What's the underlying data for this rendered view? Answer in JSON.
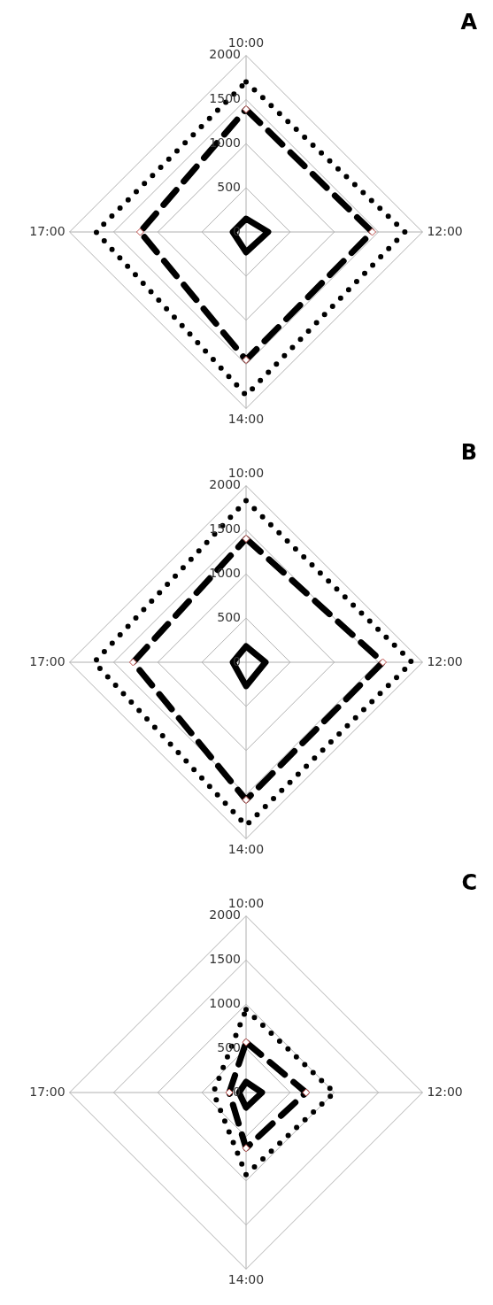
{
  "chart_data": [
    {
      "type": "radar",
      "title": "A",
      "categories": [
        "10:00",
        "12:00",
        "14:00",
        "17:00"
      ],
      "ylim": [
        0,
        2000
      ],
      "yticks": [
        0,
        500,
        1000,
        1500,
        2000
      ],
      "grid": true,
      "series": [
        {
          "color": "#000000",
          "line_style": "solid",
          "marker": "none",
          "values": [
            150,
            250,
            230,
            150
          ]
        },
        {
          "color": "#000000",
          "line_style": "dashed",
          "marker": "diamond",
          "values": [
            1390,
            1430,
            1450,
            1200
          ]
        },
        {
          "color": "#000000",
          "line_style": "dotted",
          "marker": "none",
          "values": [
            1700,
            1800,
            1850,
            1700
          ]
        }
      ]
    },
    {
      "type": "radar",
      "title": "B",
      "categories": [
        "10:00",
        "12:00",
        "14:00",
        "17:00"
      ],
      "ylim": [
        0,
        2000
      ],
      "yticks": [
        0,
        500,
        1000,
        1500,
        2000
      ],
      "grid": true,
      "series": [
        {
          "color": "#000000",
          "line_style": "solid",
          "marker": "none",
          "values": [
            180,
            220,
            270,
            150
          ]
        },
        {
          "color": "#000000",
          "line_style": "dashed",
          "marker": "diamond",
          "values": [
            1400,
            1550,
            1560,
            1280
          ]
        },
        {
          "color": "#000000",
          "line_style": "dotted",
          "marker": "none",
          "values": [
            1830,
            1880,
            1850,
            1720
          ]
        }
      ]
    },
    {
      "type": "radar",
      "title": "C",
      "categories": [
        "10:00",
        "12:00",
        "14:00",
        "17:00"
      ],
      "ylim": [
        0,
        2000
      ],
      "yticks": [
        0,
        500,
        1000,
        1500,
        2000
      ],
      "grid": true,
      "series": [
        {
          "color": "#000000",
          "line_style": "solid",
          "marker": "none",
          "values": [
            120,
            180,
            170,
            80
          ]
        },
        {
          "color": "#000000",
          "line_style": "dashed",
          "marker": "diamond",
          "values": [
            570,
            680,
            630,
            190
          ]
        },
        {
          "color": "#000000",
          "line_style": "dotted",
          "marker": "none",
          "values": [
            940,
            1000,
            930,
            370
          ]
        }
      ]
    }
  ]
}
